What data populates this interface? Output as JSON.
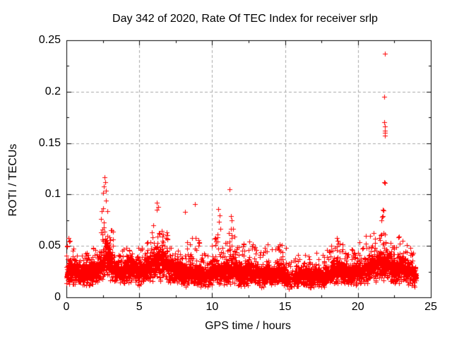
{
  "chart_data": {
    "type": "scatter",
    "title": "Day 342 of 2020, Rate Of TEC Index for receiver srlp",
    "xlabel": "GPS time / hours",
    "ylabel": "ROTI / TECUs",
    "xlim": [
      0,
      25
    ],
    "ylim": [
      0,
      0.25
    ],
    "xticks": [
      0,
      5,
      10,
      15,
      20,
      25
    ],
    "xtick_labels": [
      "0",
      "5",
      "10",
      "15",
      "20",
      "25"
    ],
    "yticks": [
      0,
      0.05,
      0.1,
      0.15,
      0.2,
      0.25
    ],
    "ytick_labels": [
      "0",
      "0.05",
      "0.1",
      "0.15",
      "0.2",
      "0.25"
    ],
    "x_minor_step": 2.5,
    "y_minor_step": 0.025,
    "grid": {
      "on": true,
      "color": "#a6a6a6",
      "dash": [
        4,
        3
      ]
    },
    "border_color": "#000000",
    "marker": {
      "shape": "plus",
      "size": 7,
      "color": "#ff0000"
    },
    "legend": "none",
    "data_t_range_hours": [
      0,
      24
    ],
    "generator": {
      "seed": 20201207,
      "n": 5000,
      "t_range": [
        0,
        24
      ],
      "y_min": 0.006,
      "y_max": 0.249,
      "tail_prob": 0.28,
      "tail_pow": 2.6,
      "gaps": [
        [
          15.25,
          15.6,
          0.75
        ]
      ],
      "mean_curve": [
        [
          0,
          0.02
        ],
        [
          0.2,
          0.026
        ],
        [
          0.5,
          0.024
        ],
        [
          1,
          0.021
        ],
        [
          1.5,
          0.022
        ],
        [
          2,
          0.024
        ],
        [
          2.4,
          0.03
        ],
        [
          2.7,
          0.04
        ],
        [
          3,
          0.032
        ],
        [
          3.4,
          0.026
        ],
        [
          3.8,
          0.024
        ],
        [
          4.2,
          0.027
        ],
        [
          4.6,
          0.028
        ],
        [
          5,
          0.024
        ],
        [
          5.4,
          0.026
        ],
        [
          5.8,
          0.03
        ],
        [
          6.2,
          0.036
        ],
        [
          6.6,
          0.033
        ],
        [
          7,
          0.028
        ],
        [
          7.4,
          0.026
        ],
        [
          7.8,
          0.023
        ],
        [
          8.2,
          0.021
        ],
        [
          8.6,
          0.024
        ],
        [
          9,
          0.021
        ],
        [
          9.4,
          0.019
        ],
        [
          9.8,
          0.022
        ],
        [
          10.2,
          0.027
        ],
        [
          10.6,
          0.023
        ],
        [
          11,
          0.025
        ],
        [
          11.4,
          0.028
        ],
        [
          11.8,
          0.023
        ],
        [
          12.2,
          0.022
        ],
        [
          12.6,
          0.025
        ],
        [
          13,
          0.022
        ],
        [
          13.4,
          0.02
        ],
        [
          13.8,
          0.023
        ],
        [
          14.2,
          0.02
        ],
        [
          14.6,
          0.023
        ],
        [
          15,
          0.021
        ],
        [
          15.4,
          0.016
        ],
        [
          15.8,
          0.019
        ],
        [
          16.2,
          0.021
        ],
        [
          16.6,
          0.019
        ],
        [
          17,
          0.021
        ],
        [
          17.5,
          0.019
        ],
        [
          18,
          0.022
        ],
        [
          18.5,
          0.026
        ],
        [
          19,
          0.024
        ],
        [
          19.5,
          0.021
        ],
        [
          20,
          0.024
        ],
        [
          20.5,
          0.027
        ],
        [
          21,
          0.029
        ],
        [
          21.4,
          0.031
        ],
        [
          21.8,
          0.033
        ],
        [
          22.2,
          0.029
        ],
        [
          22.6,
          0.027
        ],
        [
          23,
          0.029
        ],
        [
          23.4,
          0.025
        ],
        [
          23.8,
          0.021
        ],
        [
          24,
          0.019
        ]
      ],
      "max_curve": [
        [
          0,
          0.05
        ],
        [
          0.2,
          0.058
        ],
        [
          0.5,
          0.048
        ],
        [
          1,
          0.04
        ],
        [
          1.5,
          0.045
        ],
        [
          2,
          0.052
        ],
        [
          2.3,
          0.075
        ],
        [
          2.55,
          0.105
        ],
        [
          2.75,
          0.115
        ],
        [
          3,
          0.08
        ],
        [
          3.3,
          0.058
        ],
        [
          3.7,
          0.05
        ],
        [
          4.1,
          0.048
        ],
        [
          4.5,
          0.052
        ],
        [
          4.9,
          0.05
        ],
        [
          5.3,
          0.048
        ],
        [
          5.7,
          0.062
        ],
        [
          6,
          0.075
        ],
        [
          6.25,
          0.09
        ],
        [
          6.5,
          0.085
        ],
        [
          6.8,
          0.068
        ],
        [
          7.1,
          0.058
        ],
        [
          7.5,
          0.05
        ],
        [
          7.9,
          0.046
        ],
        [
          8.2,
          0.06
        ],
        [
          8.5,
          0.058
        ],
        [
          8.85,
          0.075
        ],
        [
          9.2,
          0.048
        ],
        [
          9.6,
          0.044
        ],
        [
          10,
          0.052
        ],
        [
          10.35,
          0.078
        ],
        [
          10.7,
          0.062
        ],
        [
          11,
          0.055
        ],
        [
          11.3,
          0.08
        ],
        [
          11.6,
          0.058
        ],
        [
          12,
          0.05
        ],
        [
          12.4,
          0.056
        ],
        [
          12.7,
          0.06
        ],
        [
          13,
          0.05
        ],
        [
          13.4,
          0.044
        ],
        [
          13.8,
          0.054
        ],
        [
          14.2,
          0.044
        ],
        [
          14.6,
          0.052
        ],
        [
          15,
          0.055
        ],
        [
          15.4,
          0.036
        ],
        [
          15.8,
          0.04
        ],
        [
          16.2,
          0.044
        ],
        [
          16.6,
          0.04
        ],
        [
          17,
          0.045
        ],
        [
          17.5,
          0.041
        ],
        [
          18,
          0.048
        ],
        [
          18.5,
          0.06
        ],
        [
          18.9,
          0.056
        ],
        [
          19.3,
          0.048
        ],
        [
          19.7,
          0.051
        ],
        [
          20.1,
          0.054
        ],
        [
          20.5,
          0.06
        ],
        [
          20.9,
          0.06
        ],
        [
          21.2,
          0.066
        ],
        [
          21.5,
          0.072
        ],
        [
          21.75,
          0.086
        ],
        [
          22,
          0.06
        ],
        [
          22.4,
          0.056
        ],
        [
          22.8,
          0.06
        ],
        [
          23.2,
          0.057
        ],
        [
          23.6,
          0.05
        ],
        [
          24,
          0.042
        ]
      ],
      "outliers": [
        [
          0.15,
          0.058
        ],
        [
          0.18,
          0.054
        ],
        [
          2.58,
          0.108
        ],
        [
          2.62,
          0.117
        ],
        [
          2.66,
          0.112
        ],
        [
          2.7,
          0.104
        ],
        [
          6.22,
          0.092
        ],
        [
          6.3,
          0.088
        ],
        [
          8.15,
          0.083
        ],
        [
          8.83,
          0.091
        ],
        [
          10.42,
          0.086
        ],
        [
          10.5,
          0.08
        ],
        [
          11.2,
          0.105
        ],
        [
          11.28,
          0.079
        ],
        [
          11.32,
          0.075
        ],
        [
          21.6,
          0.075
        ],
        [
          21.65,
          0.078
        ],
        [
          21.7,
          0.085
        ],
        [
          21.8,
          0.195
        ],
        [
          21.8,
          0.112
        ],
        [
          21.82,
          0.17
        ],
        [
          21.83,
          0.157
        ],
        [
          21.84,
          0.237
        ],
        [
          21.84,
          0.162
        ],
        [
          21.85,
          0.166
        ],
        [
          21.86,
          0.16
        ],
        [
          21.86,
          0.111
        ]
      ]
    }
  }
}
